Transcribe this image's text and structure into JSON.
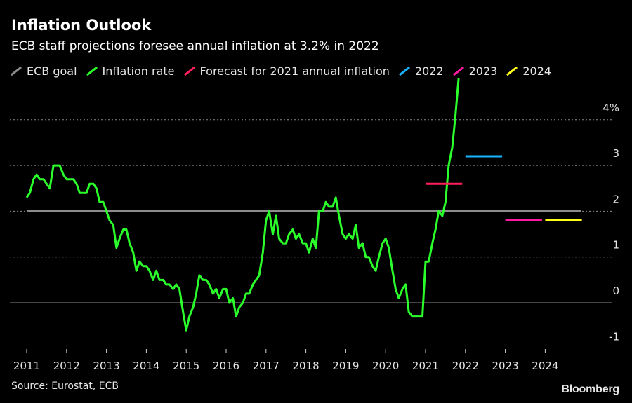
{
  "header": {
    "title": "Inflation Outlook",
    "subtitle": "ECB staff projections foresee annual inflation at 3.2% in 2022"
  },
  "legend": [
    {
      "label": "ECB goal",
      "color": "#8c8c8c"
    },
    {
      "label": "Inflation rate",
      "color": "#2bff2b"
    },
    {
      "label": "Forecast for 2021 annual inflation",
      "color": "#ff1f5a"
    },
    {
      "label": "2022",
      "color": "#1ab3ff"
    },
    {
      "label": "2023",
      "color": "#ff1aa3"
    },
    {
      "label": "2024",
      "color": "#ffff1a"
    }
  ],
  "footer": {
    "source": "Source: Eurostat, ECB",
    "brand": "Bloomberg"
  },
  "chart_data": {
    "type": "line",
    "xlim": [
      2011,
      2025
    ],
    "ylim": [
      -1,
      5
    ],
    "x_ticks": [
      "2011",
      "2012",
      "2013",
      "2014",
      "2015",
      "2016",
      "2017",
      "2018",
      "2019",
      "2020",
      "2021",
      "2022",
      "2023",
      "2024"
    ],
    "y_ticks": [
      {
        "value": 4,
        "label": "4%"
      },
      {
        "value": 3,
        "label": "3"
      },
      {
        "value": 2,
        "label": "2"
      },
      {
        "value": 1,
        "label": "1"
      },
      {
        "value": 0,
        "label": "0"
      },
      {
        "value": -1,
        "label": "-1"
      }
    ],
    "gridlines": [
      4,
      3,
      2,
      1,
      0
    ],
    "reference_line": {
      "name": "ECB goal",
      "value": 2,
      "x_range": [
        2011,
        2024.9
      ],
      "color": "#8c8c8c"
    },
    "series": [
      {
        "name": "Inflation rate",
        "color": "#2bff2b",
        "points": [
          [
            2011.0,
            2.3
          ],
          [
            2011.08,
            2.4
          ],
          [
            2011.17,
            2.7
          ],
          [
            2011.25,
            2.8
          ],
          [
            2011.33,
            2.7
          ],
          [
            2011.42,
            2.7
          ],
          [
            2011.5,
            2.6
          ],
          [
            2011.58,
            2.5
          ],
          [
            2011.67,
            3.0
          ],
          [
            2011.75,
            3.0
          ],
          [
            2011.83,
            3.0
          ],
          [
            2011.92,
            2.8
          ],
          [
            2012.0,
            2.7
          ],
          [
            2012.08,
            2.7
          ],
          [
            2012.17,
            2.7
          ],
          [
            2012.25,
            2.6
          ],
          [
            2012.33,
            2.4
          ],
          [
            2012.42,
            2.4
          ],
          [
            2012.5,
            2.4
          ],
          [
            2012.58,
            2.6
          ],
          [
            2012.67,
            2.6
          ],
          [
            2012.75,
            2.5
          ],
          [
            2012.83,
            2.2
          ],
          [
            2012.92,
            2.2
          ],
          [
            2013.0,
            2.0
          ],
          [
            2013.08,
            1.8
          ],
          [
            2013.17,
            1.7
          ],
          [
            2013.25,
            1.2
          ],
          [
            2013.33,
            1.4
          ],
          [
            2013.42,
            1.6
          ],
          [
            2013.5,
            1.6
          ],
          [
            2013.58,
            1.3
          ],
          [
            2013.67,
            1.1
          ],
          [
            2013.75,
            0.7
          ],
          [
            2013.83,
            0.9
          ],
          [
            2013.92,
            0.8
          ],
          [
            2014.0,
            0.8
          ],
          [
            2014.08,
            0.7
          ],
          [
            2014.17,
            0.5
          ],
          [
            2014.25,
            0.7
          ],
          [
            2014.33,
            0.5
          ],
          [
            2014.42,
            0.5
          ],
          [
            2014.5,
            0.4
          ],
          [
            2014.58,
            0.4
          ],
          [
            2014.67,
            0.3
          ],
          [
            2014.75,
            0.4
          ],
          [
            2014.83,
            0.3
          ],
          [
            2014.92,
            -0.2
          ],
          [
            2015.0,
            -0.6
          ],
          [
            2015.08,
            -0.3
          ],
          [
            2015.17,
            -0.1
          ],
          [
            2015.25,
            0.2
          ],
          [
            2015.33,
            0.6
          ],
          [
            2015.42,
            0.5
          ],
          [
            2015.5,
            0.5
          ],
          [
            2015.58,
            0.4
          ],
          [
            2015.67,
            0.2
          ],
          [
            2015.75,
            0.3
          ],
          [
            2015.83,
            0.1
          ],
          [
            2015.92,
            0.3
          ],
          [
            2016.0,
            0.3
          ],
          [
            2016.08,
            0.0
          ],
          [
            2016.17,
            0.1
          ],
          [
            2016.25,
            -0.3
          ],
          [
            2016.33,
            -0.1
          ],
          [
            2016.42,
            0.0
          ],
          [
            2016.5,
            0.2
          ],
          [
            2016.58,
            0.2
          ],
          [
            2016.67,
            0.4
          ],
          [
            2016.75,
            0.5
          ],
          [
            2016.83,
            0.6
          ],
          [
            2016.92,
            1.1
          ],
          [
            2017.0,
            1.8
          ],
          [
            2017.08,
            2.0
          ],
          [
            2017.17,
            1.5
          ],
          [
            2017.25,
            1.9
          ],
          [
            2017.33,
            1.4
          ],
          [
            2017.42,
            1.3
          ],
          [
            2017.5,
            1.3
          ],
          [
            2017.58,
            1.5
          ],
          [
            2017.67,
            1.6
          ],
          [
            2017.75,
            1.4
          ],
          [
            2017.83,
            1.5
          ],
          [
            2017.92,
            1.3
          ],
          [
            2018.0,
            1.3
          ],
          [
            2018.08,
            1.1
          ],
          [
            2018.17,
            1.4
          ],
          [
            2018.25,
            1.2
          ],
          [
            2018.33,
            2.0
          ],
          [
            2018.42,
            2.0
          ],
          [
            2018.5,
            2.2
          ],
          [
            2018.58,
            2.1
          ],
          [
            2018.67,
            2.1
          ],
          [
            2018.75,
            2.3
          ],
          [
            2018.83,
            1.9
          ],
          [
            2018.92,
            1.5
          ],
          [
            2019.0,
            1.4
          ],
          [
            2019.08,
            1.5
          ],
          [
            2019.17,
            1.4
          ],
          [
            2019.25,
            1.7
          ],
          [
            2019.33,
            1.2
          ],
          [
            2019.42,
            1.3
          ],
          [
            2019.5,
            1.0
          ],
          [
            2019.58,
            1.0
          ],
          [
            2019.67,
            0.8
          ],
          [
            2019.75,
            0.7
          ],
          [
            2019.83,
            1.0
          ],
          [
            2019.92,
            1.3
          ],
          [
            2020.0,
            1.4
          ],
          [
            2020.08,
            1.2
          ],
          [
            2020.17,
            0.7
          ],
          [
            2020.25,
            0.3
          ],
          [
            2020.33,
            0.1
          ],
          [
            2020.42,
            0.3
          ],
          [
            2020.5,
            0.4
          ],
          [
            2020.58,
            -0.2
          ],
          [
            2020.67,
            -0.3
          ],
          [
            2020.75,
            -0.3
          ],
          [
            2020.83,
            -0.3
          ],
          [
            2020.92,
            -0.3
          ],
          [
            2021.0,
            0.9
          ],
          [
            2021.08,
            0.9
          ],
          [
            2021.17,
            1.3
          ],
          [
            2021.25,
            1.6
          ],
          [
            2021.33,
            2.0
          ],
          [
            2021.42,
            1.9
          ],
          [
            2021.5,
            2.2
          ],
          [
            2021.58,
            3.0
          ],
          [
            2021.67,
            3.4
          ],
          [
            2021.75,
            4.1
          ],
          [
            2021.83,
            4.9
          ]
        ]
      },
      {
        "name": "Forecast for 2021 annual inflation",
        "color": "#ff1f5a",
        "x_range": [
          2021.0,
          2021.92
        ],
        "value": 2.6
      },
      {
        "name": "2022",
        "color": "#1ab3ff",
        "x_range": [
          2022.0,
          2022.92
        ],
        "value": 3.2
      },
      {
        "name": "2023",
        "color": "#ff1aa3",
        "x_range": [
          2023.0,
          2023.92
        ],
        "value": 1.8
      },
      {
        "name": "2024",
        "color": "#ffff1a",
        "x_range": [
          2024.0,
          2024.92
        ],
        "value": 1.8
      }
    ]
  }
}
